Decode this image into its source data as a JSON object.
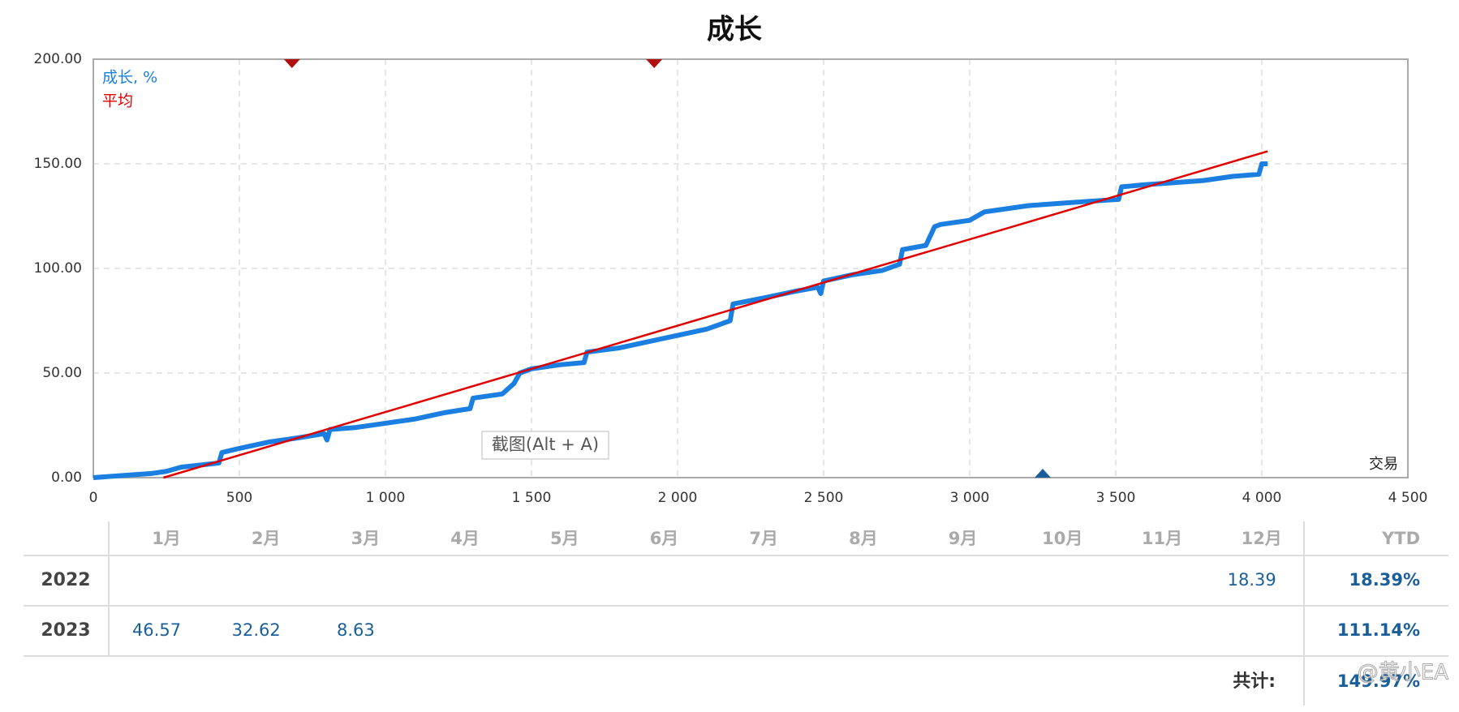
{
  "chart_data": {
    "type": "line",
    "title": "成长",
    "x_label": "交易",
    "xlim": [
      0,
      4500
    ],
    "xticks": [
      0,
      500,
      {
        "value": 1000,
        "label": "1 000"
      },
      {
        "value": 1500,
        "label": "1 500"
      },
      {
        "value": 2000,
        "label": "2 000"
      },
      {
        "value": 2500,
        "label": "2 500"
      },
      {
        "value": 3000,
        "label": "3 000"
      },
      {
        "value": 3500,
        "label": "3 500"
      },
      {
        "value": 4000,
        "label": "4 000"
      },
      {
        "value": 4500,
        "label": "4 500"
      }
    ],
    "ylim": [
      0,
      200
    ],
    "yticks": [
      {
        "value": 0,
        "label": "0.00"
      },
      {
        "value": 50,
        "label": "50.00"
      },
      {
        "value": 100,
        "label": "100.00"
      },
      {
        "value": 150,
        "label": "150.00"
      },
      {
        "value": 200,
        "label": "200.00"
      }
    ],
    "grid": true,
    "series": [
      {
        "name": "成长, %",
        "color": "#1a7fe0",
        "x": [
          0,
          100,
          200,
          250,
          300,
          430,
          440,
          500,
          600,
          700,
          790,
          800,
          810,
          900,
          1000,
          1100,
          1200,
          1290,
          1300,
          1400,
          1440,
          1460,
          1500,
          1600,
          1680,
          1690,
          1800,
          1900,
          2000,
          2100,
          2180,
          2190,
          2300,
          2400,
          2480,
          2490,
          2500,
          2600,
          2700,
          2760,
          2770,
          2850,
          2880,
          2900,
          3000,
          3050,
          3100,
          3200,
          3300,
          3400,
          3510,
          3520,
          3600,
          3700,
          3800,
          3900,
          3990,
          4000,
          4020
        ],
        "values": [
          0,
          1,
          2,
          3,
          5,
          7,
          12,
          14,
          17,
          19,
          21,
          18,
          23,
          24,
          26,
          28,
          31,
          33,
          38,
          40,
          45,
          50,
          52,
          54,
          55,
          60,
          62,
          65,
          68,
          71,
          75,
          83,
          86,
          89,
          91,
          88,
          94,
          97,
          99,
          102,
          109,
          111,
          120,
          121,
          123,
          127,
          128,
          130,
          131,
          132,
          133,
          139,
          140,
          141,
          142,
          144,
          145,
          150,
          150
        ]
      },
      {
        "name": "平均",
        "color": "#e00000",
        "x": [
          240,
          4020
        ],
        "values": [
          0,
          156
        ]
      }
    ],
    "top_markers": [
      680,
      1920
    ],
    "top_marker_color": "#b01010",
    "bottom_markers": [
      3250
    ],
    "bottom_marker_color": "#1a5f9a",
    "overlay_tooltip": "截图(Alt + A)"
  },
  "table": {
    "header": [
      "1月",
      "2月",
      "3月",
      "4月",
      "5月",
      "6月",
      "7月",
      "8月",
      "9月",
      "10月",
      "11月",
      "12月",
      "YTD"
    ],
    "rows": [
      {
        "year": "2022",
        "cells": [
          null,
          null,
          null,
          null,
          null,
          null,
          null,
          null,
          null,
          null,
          null,
          18.39
        ],
        "ytd": "18.39%"
      },
      {
        "year": "2023",
        "cells": [
          46.57,
          32.62,
          8.63,
          null,
          null,
          null,
          null,
          null,
          null,
          null,
          null,
          null
        ],
        "ytd": "111.14%"
      }
    ],
    "total_label": "共计:",
    "total": "149.97%"
  },
  "watermark": "@黄小EA"
}
